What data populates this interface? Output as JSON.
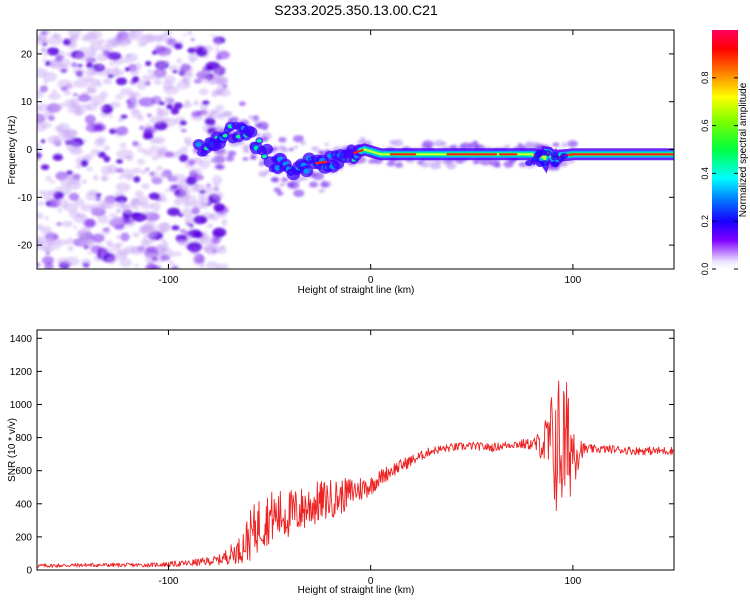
{
  "title": "S233.2025.350.13.00.C21",
  "chart_data": [
    {
      "type": "heatmap",
      "name": "spectrogram",
      "xlabel": "Height of straight line (km)",
      "ylabel": "Frequency (Hz)",
      "xlim": [
        -165,
        150
      ],
      "ylim": [
        -25,
        25
      ],
      "xticks": [
        -100,
        0,
        100
      ],
      "yticks": [
        -20,
        -10,
        0,
        10,
        20
      ],
      "colorbar": {
        "label": "Normalized spectral amplitude",
        "range": [
          0,
          1
        ],
        "ticks": [
          0.0,
          0.2,
          0.4,
          0.6,
          0.8
        ],
        "tick_labels": [
          "0.0",
          "0.2",
          "0.4",
          "0.6",
          "0.8"
        ],
        "stops": [
          "#ffffff",
          "#7a00ff",
          "#0000ff",
          "#00ffff",
          "#00ff00",
          "#ffff00",
          "#ff0000",
          "#ff0060"
        ]
      },
      "ridge": {
        "description": "frequency ridge of the signal",
        "x": [
          -80,
          -70,
          -62,
          -55,
          -48,
          -40,
          -30,
          -20,
          -10,
          -3,
          5,
          20,
          50,
          80,
          90,
          100,
          150
        ],
        "y": [
          0.5,
          3.5,
          4,
          1,
          -3,
          -4,
          -3,
          -2.5,
          -1,
          0,
          -1,
          -1,
          -1,
          -1,
          -1.5,
          -1,
          -1
        ]
      },
      "noise_region_x": [
        -165,
        -78
      ]
    },
    {
      "type": "line",
      "name": "snr",
      "xlabel": "Height of straight line (km)",
      "ylabel": "SNR (10 * v/v)",
      "xlim": [
        -165,
        150
      ],
      "ylim": [
        0,
        1450
      ],
      "xticks": [
        -100,
        0,
        100
      ],
      "yticks": [
        0,
        200,
        400,
        600,
        800,
        1000,
        1200,
        1400
      ],
      "color": "#ee2222",
      "series": [
        {
          "name": "SNR",
          "x": [
            -165,
            -140,
            -110,
            -90,
            -75,
            -65,
            -60,
            -55,
            -50,
            -45,
            -40,
            -35,
            -30,
            -25,
            -20,
            -15,
            -10,
            -5,
            0,
            5,
            10,
            15,
            20,
            25,
            30,
            40,
            50,
            60,
            70,
            80,
            85,
            88,
            92,
            96,
            100,
            105,
            110,
            120,
            130,
            140,
            150
          ],
          "y": [
            25,
            30,
            30,
            40,
            60,
            120,
            200,
            280,
            320,
            330,
            340,
            360,
            390,
            410,
            430,
            440,
            470,
            490,
            510,
            560,
            600,
            630,
            660,
            690,
            720,
            740,
            750,
            740,
            760,
            760,
            760,
            760,
            750,
            750,
            740,
            730,
            730,
            730,
            720,
            720,
            720
          ],
          "amp": [
            12,
            12,
            12,
            20,
            30,
            80,
            150,
            170,
            160,
            160,
            150,
            140,
            140,
            130,
            120,
            110,
            90,
            80,
            60,
            50,
            45,
            40,
            35,
            30,
            25,
            25,
            25,
            25,
            25,
            35,
            100,
            250,
            450,
            450,
            250,
            40,
            25,
            25,
            25,
            25,
            25
          ]
        }
      ]
    }
  ]
}
